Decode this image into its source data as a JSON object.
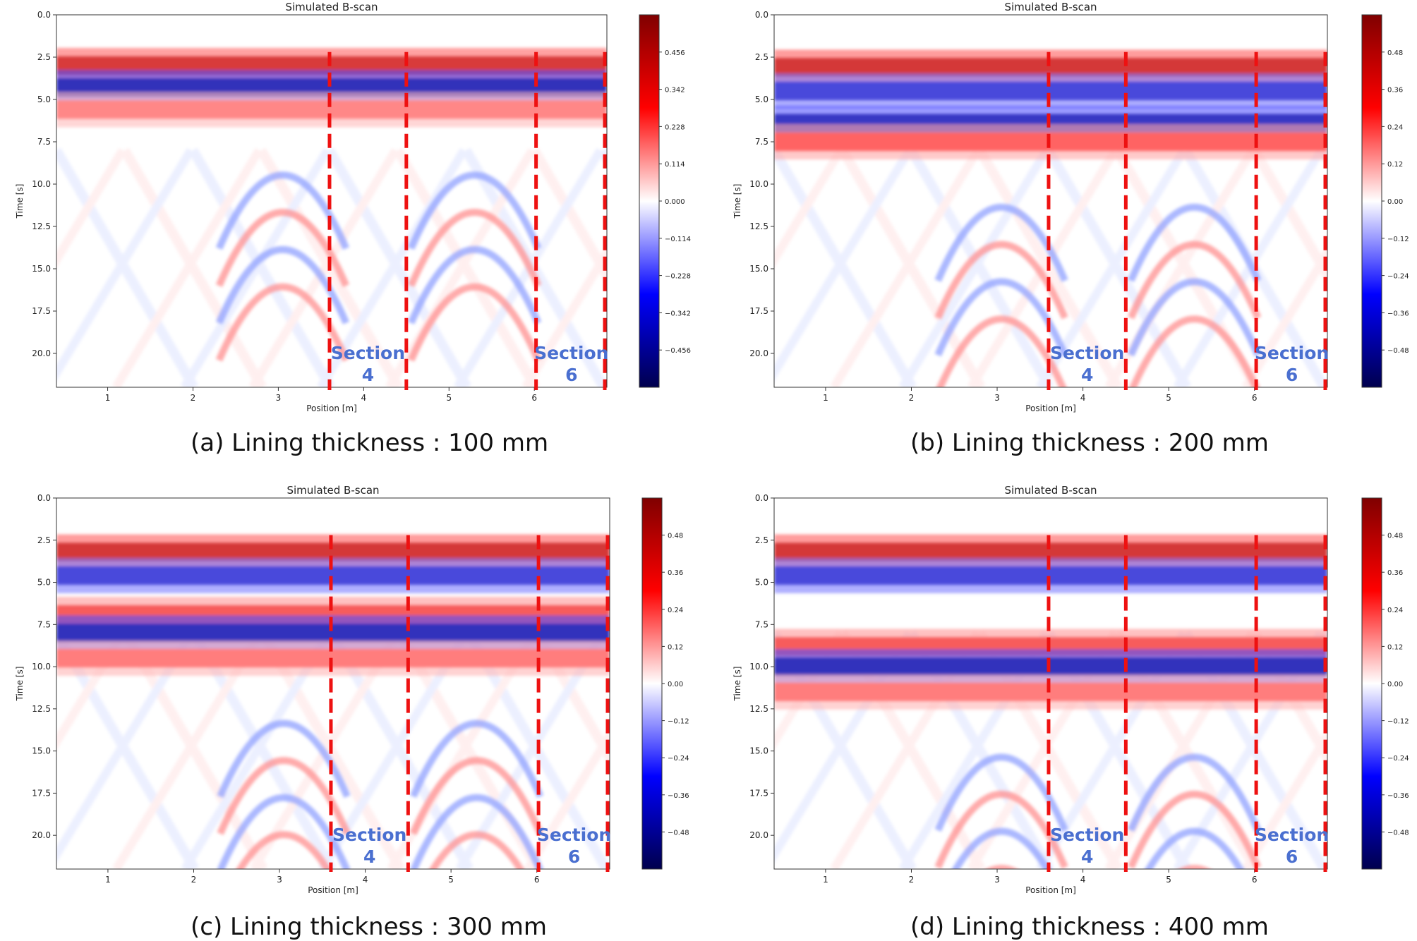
{
  "chart_data": [
    {
      "type": "heatmap",
      "panel": "a",
      "title": "Simulated B-scan",
      "xlabel": "Position [m]",
      "ylabel": "Time [s]",
      "xlim": [
        0.4,
        6.85
      ],
      "ylim": [
        22.0,
        0.0
      ],
      "xticks": [
        1,
        2,
        3,
        4,
        5,
        6
      ],
      "yticks": [
        0.0,
        2.5,
        5.0,
        7.5,
        10.0,
        12.5,
        15.0,
        17.5,
        20.0
      ],
      "colorbar_ticks": [
        0.456,
        0.342,
        0.228,
        0.114,
        0.0,
        -0.114,
        -0.228,
        -0.342,
        -0.456
      ],
      "colorbar_max": 0.57,
      "lining_thickness_mm": 100,
      "caption": "(a) Lining thickness : 100 mm",
      "section_boundaries_m": [
        3.6,
        4.5,
        6.02,
        6.85
      ],
      "annotations": [
        {
          "title": "Section",
          "num": "4"
        },
        {
          "title": "Section",
          "num": "6"
        }
      ],
      "bands": [
        {
          "t": 3.0,
          "value": 0.5
        },
        {
          "t": 4.3,
          "value": -0.56
        },
        {
          "t": 5.6,
          "value": 0.22
        }
      ]
    },
    {
      "type": "heatmap",
      "panel": "b",
      "title": "Simulated B-scan",
      "xlabel": "Position [m]",
      "ylabel": "Time [s]",
      "xlim": [
        0.4,
        6.85
      ],
      "ylim": [
        22.0,
        0.0
      ],
      "xticks": [
        1,
        2,
        3,
        4,
        5,
        6
      ],
      "yticks": [
        0.0,
        2.5,
        5.0,
        7.5,
        10.0,
        12.5,
        15.0,
        17.5,
        20.0
      ],
      "colorbar_ticks": [
        0.48,
        0.36,
        0.24,
        0.12,
        0.0,
        -0.12,
        -0.24,
        -0.36,
        -0.48
      ],
      "colorbar_max": 0.6,
      "lining_thickness_mm": 200,
      "caption": "(b) Lining thickness : 200 mm",
      "section_boundaries_m": [
        3.6,
        4.5,
        6.02,
        6.85
      ],
      "annotations": [
        {
          "title": "Section",
          "num": "4"
        },
        {
          "title": "Section",
          "num": "6"
        }
      ],
      "bands": [
        {
          "t": 3.1,
          "value": 0.55
        },
        {
          "t": 4.5,
          "value": -0.45
        },
        {
          "t": 6.4,
          "value": -0.55
        },
        {
          "t": 7.5,
          "value": 0.3
        }
      ]
    },
    {
      "type": "heatmap",
      "panel": "c",
      "title": "Simulated B-scan",
      "xlabel": "Position [m]",
      "ylabel": "Time [s]",
      "xlim": [
        0.4,
        6.85
      ],
      "ylim": [
        22.0,
        0.0
      ],
      "xticks": [
        1,
        2,
        3,
        4,
        5,
        6
      ],
      "yticks": [
        0.0,
        2.5,
        5.0,
        7.5,
        10.0,
        12.5,
        15.0,
        17.5,
        20.0
      ],
      "colorbar_ticks": [
        0.48,
        0.36,
        0.24,
        0.12,
        0.0,
        -0.12,
        -0.24,
        -0.36,
        -0.48
      ],
      "colorbar_max": 0.6,
      "lining_thickness_mm": 300,
      "caption": "(c) Lining thickness : 300 mm",
      "section_boundaries_m": [
        3.6,
        4.5,
        6.02,
        6.85
      ],
      "annotations": [
        {
          "title": "Section",
          "num": "4"
        },
        {
          "title": "Section",
          "num": "6"
        }
      ],
      "bands": [
        {
          "t": 3.2,
          "value": 0.55
        },
        {
          "t": 4.6,
          "value": -0.45
        },
        {
          "t": 6.9,
          "value": 0.35
        },
        {
          "t": 8.0,
          "value": -0.58
        },
        {
          "t": 9.5,
          "value": 0.25
        }
      ]
    },
    {
      "type": "heatmap",
      "panel": "d",
      "title": "Simulated B-scan",
      "xlabel": "Position [m]",
      "ylabel": "Time [s]",
      "xlim": [
        0.4,
        6.85
      ],
      "ylim": [
        22.0,
        0.0
      ],
      "xticks": [
        1,
        2,
        3,
        4,
        5,
        6
      ],
      "yticks": [
        0.0,
        2.5,
        5.0,
        7.5,
        10.0,
        12.5,
        15.0,
        17.5,
        20.0
      ],
      "colorbar_ticks": [
        0.48,
        0.36,
        0.24,
        0.12,
        0.0,
        -0.12,
        -0.24,
        -0.36,
        -0.48
      ],
      "colorbar_max": 0.6,
      "lining_thickness_mm": 400,
      "caption": "(d) Lining thickness : 400 mm",
      "section_boundaries_m": [
        3.6,
        4.5,
        6.02,
        6.85
      ],
      "annotations": [
        {
          "title": "Section",
          "num": "4"
        },
        {
          "title": "Section",
          "num": "6"
        }
      ],
      "bands": [
        {
          "t": 3.2,
          "value": 0.55
        },
        {
          "t": 4.6,
          "value": -0.45
        },
        {
          "t": 8.8,
          "value": 0.35
        },
        {
          "t": 10.0,
          "value": -0.58
        },
        {
          "t": 11.5,
          "value": 0.25
        }
      ]
    }
  ],
  "colors": {
    "section_line": "#ee1111",
    "section_text": "#4a6fd0",
    "positive": "#b40012",
    "negative": "#000e6e"
  }
}
